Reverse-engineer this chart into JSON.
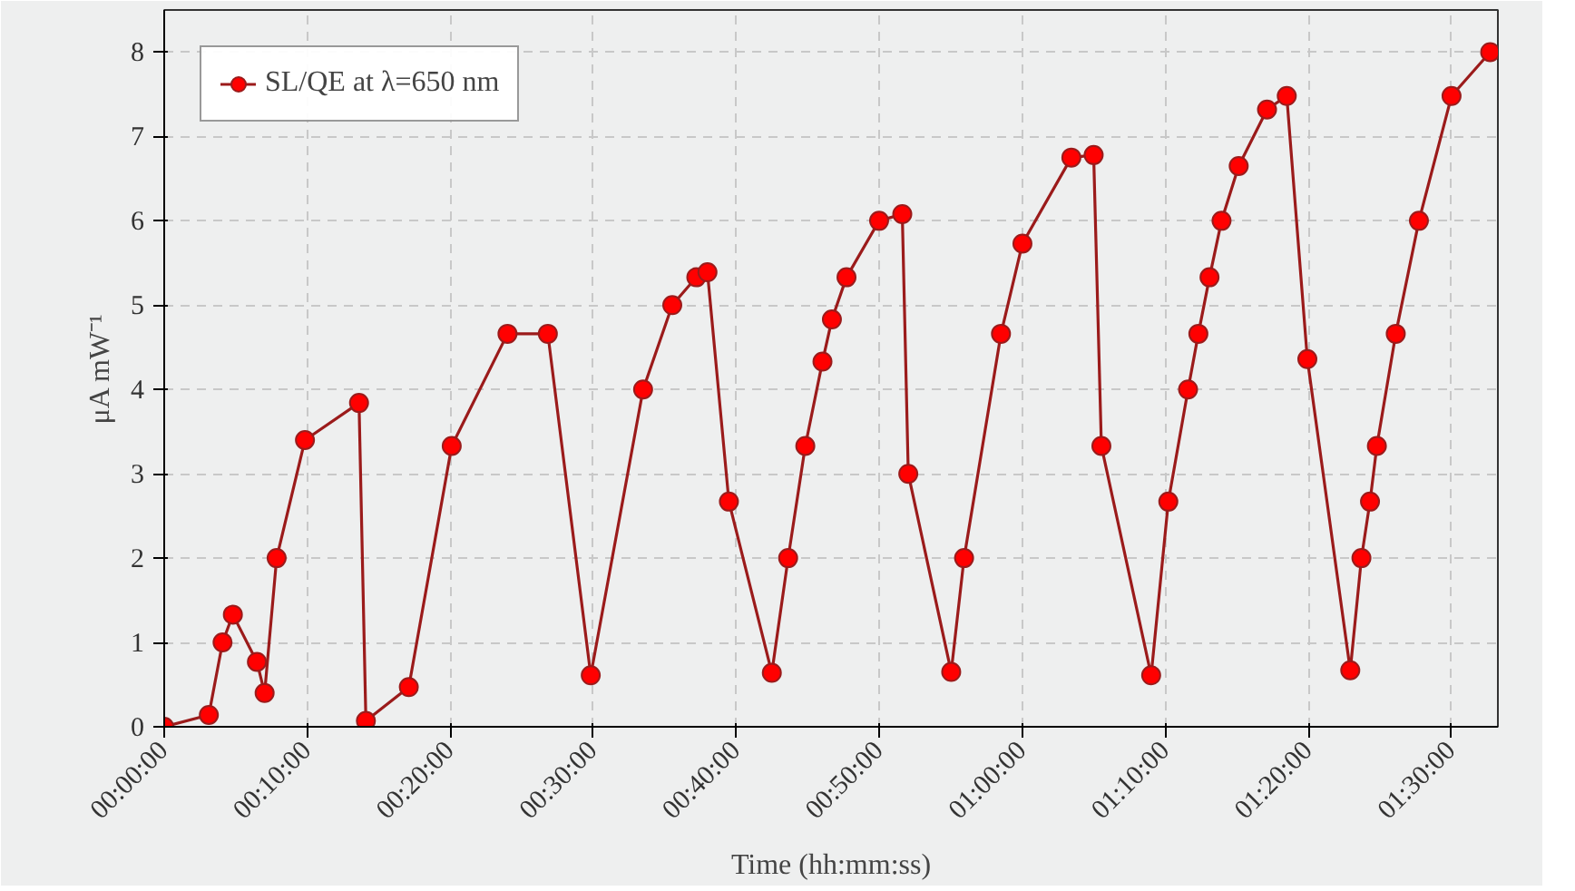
{
  "chart_data": {
    "type": "line",
    "xlabel": "Time (hh:mm:ss)",
    "ylabel": "μA mW⁻¹",
    "x": [
      0,
      0.052,
      0.068,
      0.08,
      0.108,
      0.117,
      0.131,
      0.164,
      0.227,
      0.235,
      0.285,
      0.335,
      0.4,
      0.447,
      0.497,
      0.558,
      0.592,
      0.62,
      0.633,
      0.658,
      0.708,
      0.727,
      0.747,
      0.767,
      0.778,
      0.795,
      0.833,
      0.86,
      0.867,
      0.917,
      0.932,
      0.975,
      1.0,
      1.057,
      1.083,
      1.092,
      1.15,
      1.17,
      1.193,
      1.205,
      1.218,
      1.232,
      1.252,
      1.285,
      1.308,
      1.332,
      1.382,
      1.395,
      1.405,
      1.413,
      1.435,
      1.462,
      1.5,
      1.545
    ],
    "series": [
      {
        "name": "SL/QE at λ=650 nm",
        "color": "#9b1b1b",
        "values": [
          0,
          0.14,
          1.0,
          1.33,
          0.77,
          0.4,
          2.0,
          3.4,
          3.84,
          0.07,
          0.47,
          3.33,
          4.66,
          4.66,
          0.61,
          4.0,
          5.0,
          5.33,
          5.39,
          2.67,
          0.64,
          2.0,
          3.33,
          4.33,
          4.83,
          5.33,
          6.0,
          6.08,
          3.0,
          0.65,
          2.0,
          4.66,
          5.73,
          6.75,
          6.78,
          3.33,
          0.61,
          2.67,
          4.0,
          4.66,
          5.33,
          6.0,
          6.65,
          7.32,
          7.48,
          4.36,
          0.67,
          2.0,
          2.67,
          3.33,
          4.66,
          6.0,
          7.48,
          8.0
        ]
      }
    ],
    "xlim": [
      0,
      1.554
    ],
    "ylim": [
      0,
      8.5
    ],
    "xticks": [
      {
        "value": 0,
        "label": "00:00:00"
      },
      {
        "value": 0.16667,
        "label": "00:10:00"
      },
      {
        "value": 0.33333,
        "label": "00:20:00"
      },
      {
        "value": 0.5,
        "label": "00:30:00"
      },
      {
        "value": 0.66667,
        "label": "00:40:00"
      },
      {
        "value": 0.83333,
        "label": "00:50:00"
      },
      {
        "value": 1,
        "label": "01:00:00"
      },
      {
        "value": 1.16667,
        "label": "01:10:00"
      },
      {
        "value": 1.33333,
        "label": "01:20:00"
      },
      {
        "value": 1.5,
        "label": "01:30:00"
      }
    ],
    "yticks": [
      0,
      1,
      2,
      3,
      4,
      5,
      6,
      7,
      8
    ],
    "grid": true,
    "legend": "top left",
    "marker": "circle",
    "line_style": "solid"
  }
}
